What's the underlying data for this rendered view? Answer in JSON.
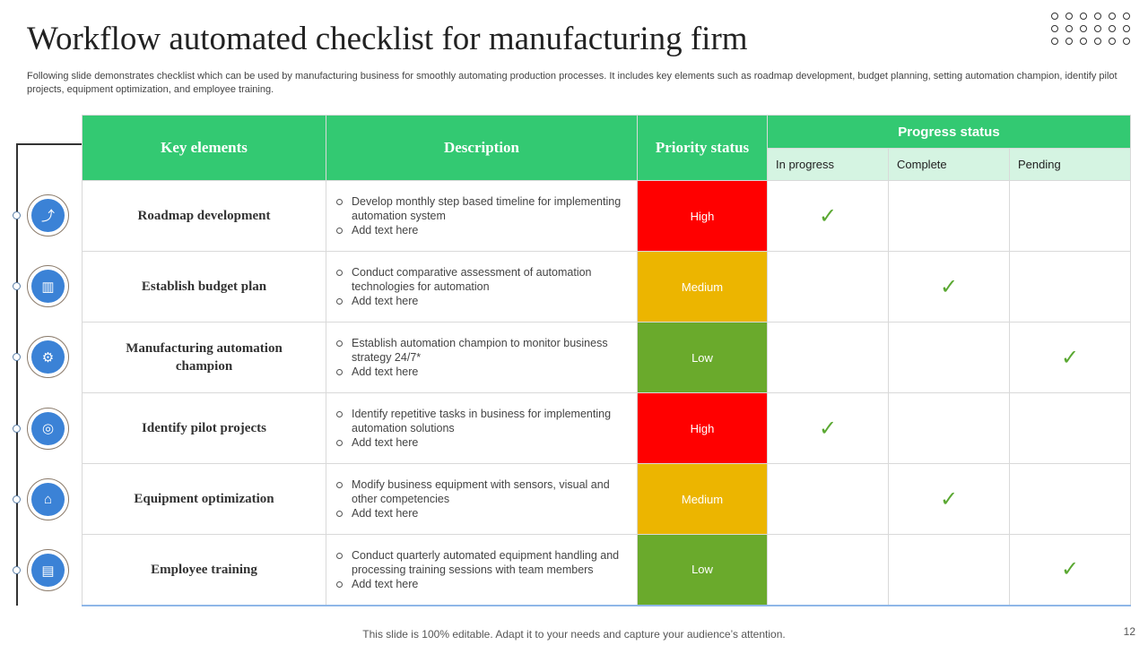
{
  "title": "Workflow automated checklist for manufacturing firm",
  "subtitle": "Following slide demonstrates checklist which can be used by manufacturing business for smoothly automating production processes. It includes key elements such as roadmap development, budget planning, setting automation champion, identify pilot projects, equipment optimization, and employee training.",
  "colors": {
    "header": "#33c972",
    "subheader": "#d5f4e2",
    "high": "#ff0000",
    "medium": "#ecb500",
    "low": "#6aaa2c",
    "check": "#5aa832",
    "icon": "#3b82d6"
  },
  "headers": {
    "key": "Key elements",
    "description": "Description",
    "priority": "Priority status",
    "progress": "Progress status",
    "in_progress": "In progress",
    "complete": "Complete",
    "pending": "Pending"
  },
  "rows": [
    {
      "key": "Roadmap development",
      "icon": "roadmap-icon",
      "glyph": "⤴",
      "desc": [
        "Develop monthly step based timeline for implementing automation system",
        "Add text here"
      ],
      "priority": "High",
      "progress": "In progress"
    },
    {
      "key": "Establish budget plan",
      "icon": "budget-chart-icon",
      "glyph": "▥",
      "desc": [
        "Conduct comparative assessment of automation technologies for automation",
        "Add text here"
      ],
      "priority": "Medium",
      "progress": "Complete"
    },
    {
      "key": "Manufacturing automation champion",
      "icon": "factory-conveyor-icon",
      "glyph": "⚙",
      "desc": [
        "Establish automation champion to monitor business strategy 24/7*",
        "Add text here"
      ],
      "priority": "Low",
      "progress": "Pending"
    },
    {
      "key": "Identify pilot projects",
      "icon": "target-monitor-icon",
      "glyph": "◎",
      "desc": [
        "Identify repetitive tasks in business for implementing automation solutions",
        "Add text here"
      ],
      "priority": "High",
      "progress": "In progress"
    },
    {
      "key": "Equipment optimization",
      "icon": "factory-icon",
      "glyph": "⌂",
      "desc": [
        "Modify business equipment with sensors, visual and other competencies",
        "Add text here"
      ],
      "priority": "Medium",
      "progress": "Complete"
    },
    {
      "key": "Employee training",
      "icon": "training-board-icon",
      "glyph": "▤",
      "desc": [
        "Conduct quarterly automated equipment handling and processing training sessions with team members",
        "Add text here"
      ],
      "priority": "Low",
      "progress": "Pending"
    }
  ],
  "check_glyph": "✓",
  "footer": "This slide is 100% editable. Adapt it to your needs and capture your audience’s attention.",
  "page_number": "12"
}
